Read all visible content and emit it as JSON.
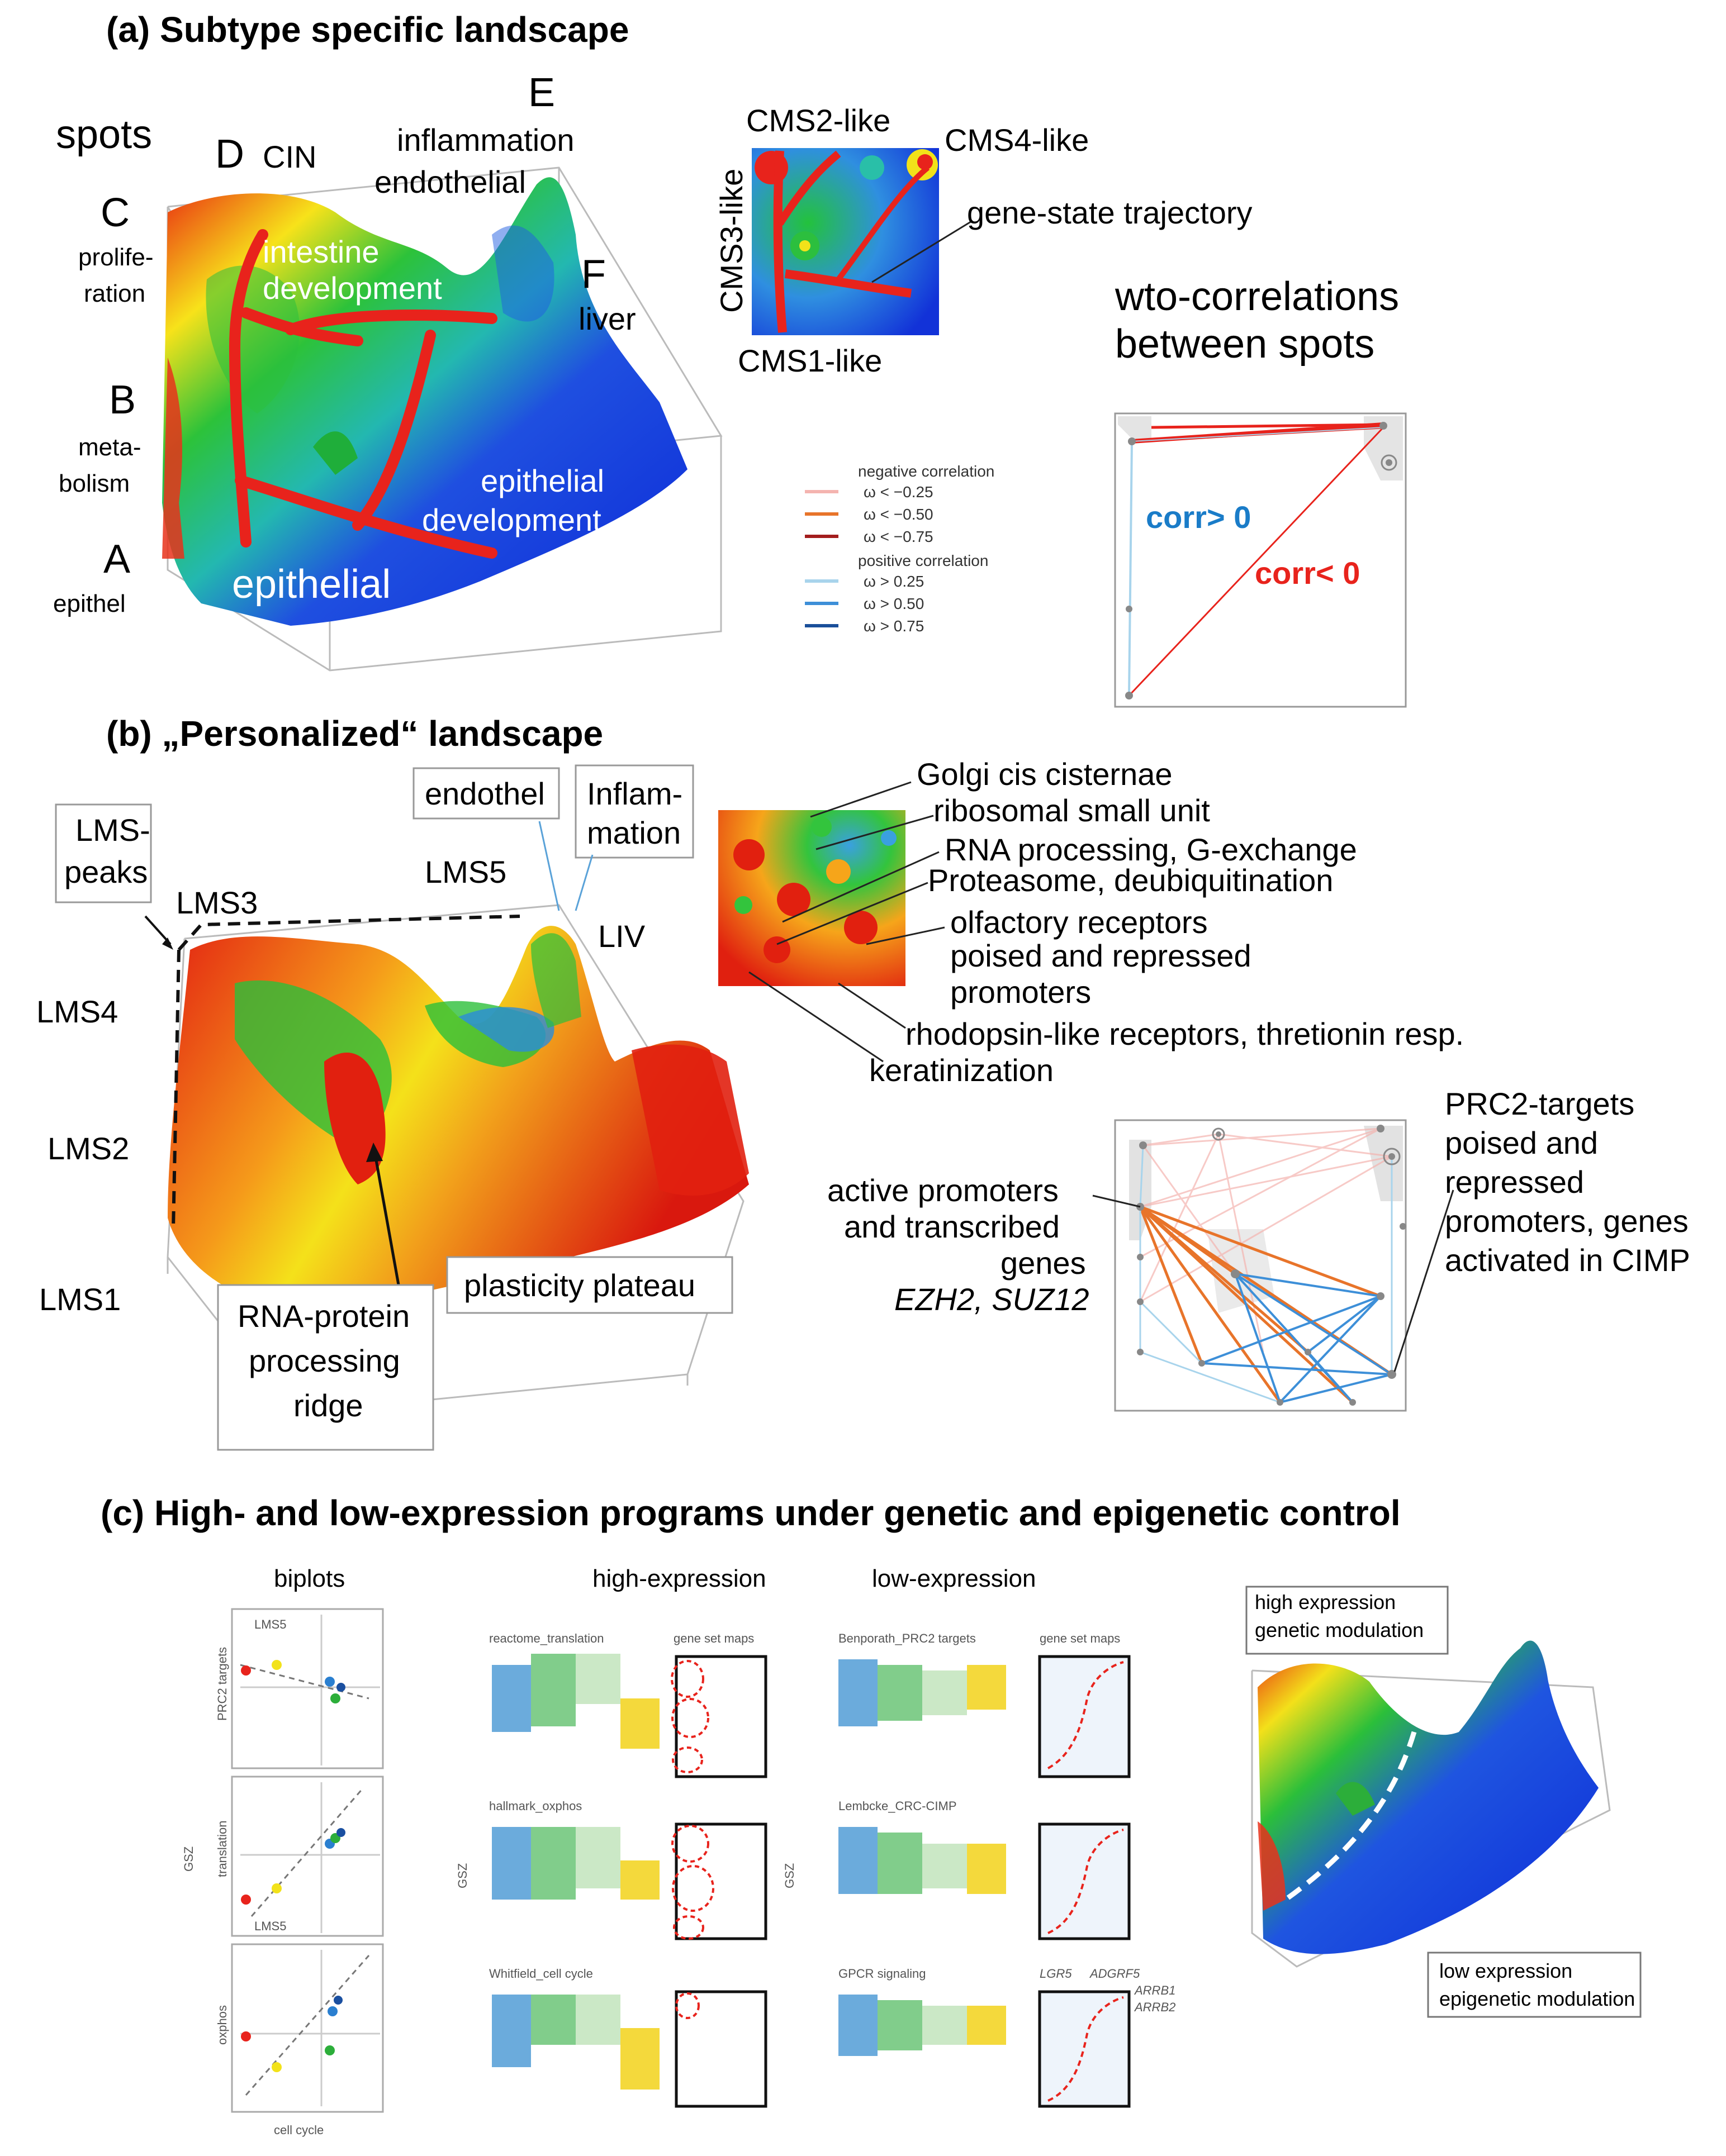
{
  "panel_a": {
    "title": "(a) Subtype specific landscape",
    "spots": "spots",
    "letters": [
      "A",
      "B",
      "C",
      "D",
      "E",
      "F"
    ],
    "left_labels": {
      "C": "prolife-",
      "C2": "ration",
      "B": "meta-",
      "B2": "bolism",
      "A": "epithel"
    },
    "top_labels": {
      "D": "CIN",
      "E": "inflammation",
      "E2": "endothelial",
      "F": "liver"
    },
    "surface_labels": {
      "intestine": "intestine",
      "intestine2": "development",
      "epi": "epithelial",
      "epidev": "epithelial",
      "epidev2": "development"
    },
    "map": {
      "cms2": "CMS2-like",
      "cms4": "CMS4-like",
      "cms3": "CMS3-like",
      "cms1": "CMS1-like",
      "traj": "gene-state trajectory"
    },
    "wto_title": "wto-correlations",
    "wto_title2": "between spots",
    "corr_pos": "corr> 0",
    "corr_neg": "corr< 0",
    "legend": {
      "neg_header": "negative correlation",
      "neg": [
        "ω < −0.25",
        "ω < −0.50",
        "ω < −0.75"
      ],
      "pos_header": "positive correlation",
      "pos": [
        "ω > 0.25",
        "ω > 0.50",
        "ω > 0.75"
      ],
      "neg_colors": [
        "#f4b4b0",
        "#e8742a",
        "#a31d1d"
      ],
      "pos_colors": [
        "#a8d4ec",
        "#3d8fd8",
        "#1a4f9a"
      ]
    }
  },
  "panel_b": {
    "title": "(b) „Personalized“ landscape",
    "lms_peaks": "LMS-",
    "lms_peaks2": "peaks",
    "endothel": "endothel",
    "inflam": "Inflam-",
    "inflam2": "mation",
    "lms": {
      "1": "LMS1",
      "2": "LMS2",
      "3": "LMS3",
      "4": "LMS4",
      "5": "LMS5",
      "liv": "LIV"
    },
    "ridge": [
      "RNA-protein",
      "processing",
      "ridge"
    ],
    "plateau": "plasticity plateau",
    "map_labels": [
      "Golgi cis cisternae",
      "ribosomal small unit",
      "RNA processing, G-exchange",
      "Proteasome, deubiquitination",
      "olfactory receptors",
      "poised and repressed",
      "promoters",
      "rhodopsin-like receptors, thretionin resp.",
      "keratinization"
    ],
    "active": [
      "active promoters",
      "and transcribed",
      "genes"
    ],
    "active_genes": "EZH2, SUZ12",
    "prc2": [
      "PRC2-targets",
      "poised and",
      "repressed",
      "promoters, genes",
      "activated in CIMP"
    ]
  },
  "panel_c": {
    "title": "(c) High- and low-expression programs under genetic and epigenetic control",
    "biplots": "biplots",
    "high_expr": "high-expression",
    "low_expr": "low-expression",
    "biplot_ylabels": [
      "PRC2 targets",
      "translation",
      "oxphos"
    ],
    "gsz": "GSZ",
    "cell_cycle": "cell cycle",
    "lms5": "LMS5",
    "high_sets": [
      "reactome_translation",
      "hallmark_oxphos",
      "Whitfield_cell cycle"
    ],
    "low_sets": [
      "Benporath_PRC2 targets",
      "Lembcke_CRC-CIMP",
      "GPCR signaling"
    ],
    "gene_set_maps": "gene set maps",
    "genes": {
      "lgr5": "LGR5",
      "adgrf5": "ADGRF5",
      "arrb1": "ARRB1",
      "arrb2": "ARRB2"
    },
    "high_box": [
      "high expression",
      "genetic modulation"
    ],
    "low_box": [
      "low expression",
      "epigenetic modulation"
    ]
  }
}
